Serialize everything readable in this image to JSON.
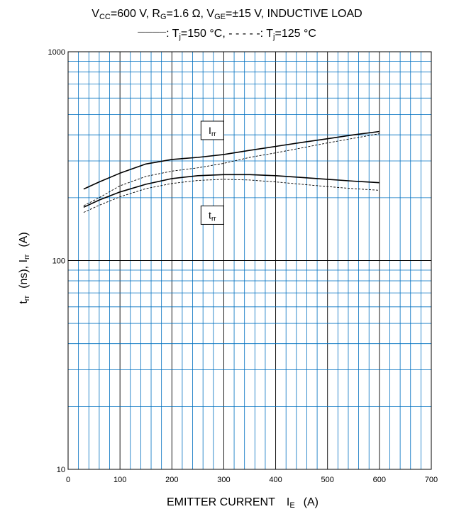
{
  "chart_data": {
    "type": "line",
    "title": "VCC=600 V, RG=1.6 Ω, VGE=±15 V, INDUCTIVE LOAD",
    "title_parts": {
      "v": "V",
      "cc": "CC",
      "part1": "=600 V, R",
      "g": "G",
      "part2": "=1.6 Ω, V",
      "ge": "GE",
      "part3": "=±15 V, INDUCTIVE LOAD"
    },
    "subtitle": "————: Tj=150 °C, - - - - -: Tj=125 °C",
    "subtitle_parts": {
      "solid_mark": "————",
      "a": ": T",
      "j1": "j",
      "b": "=150 °C, - - - - -: T",
      "j2": "j",
      "c": "=125 °C"
    },
    "xlabel": "EMITTER CURRENT IE (A)",
    "xlabel_parts": {
      "main": "EMITTER CURRENT",
      "i": "I",
      "e": "E",
      "unit": "(A)"
    },
    "ylabel": "trr (ns), Irr (A)",
    "ylabel_parts": {
      "t": "t",
      "rr1": "rr",
      "ns": "(ns), I",
      "rr2": "rr",
      "a": "(A)"
    },
    "x_ticks": [
      "0",
      "100",
      "200",
      "300",
      "400",
      "500",
      "600",
      "700"
    ],
    "y_ticks": [
      "10",
      "100",
      "1000"
    ],
    "xlim": [
      0,
      700
    ],
    "ylim": [
      10,
      1000
    ],
    "y_scale": "log",
    "grid": true,
    "grid_color": "#0070c0",
    "annotations": [
      {
        "text_main": "I",
        "text_sub": "rr",
        "x": 278,
        "y": 420
      },
      {
        "text_main": "t",
        "text_sub": "rr",
        "x": 278,
        "y": 165
      }
    ],
    "series": [
      {
        "style": "solid",
        "x": [
          30,
          60,
          100,
          150,
          200,
          250,
          300,
          350,
          400,
          450,
          500,
          550,
          600
        ],
        "y": [
          220,
          238,
          262,
          290,
          305,
          312,
          322,
          337,
          352,
          368,
          383,
          400,
          415
        ]
      },
      {
        "style": "dashed",
        "x": [
          30,
          60,
          100,
          150,
          200,
          250,
          300,
          350,
          400,
          450,
          500,
          550,
          600
        ],
        "y": [
          183,
          200,
          228,
          253,
          268,
          278,
          292,
          312,
          328,
          346,
          366,
          385,
          405
        ]
      },
      {
        "style": "solid",
        "x": [
          30,
          60,
          100,
          150,
          200,
          250,
          300,
          350,
          400,
          450,
          500,
          550,
          600
        ],
        "y": [
          180,
          195,
          213,
          232,
          247,
          255,
          258,
          258,
          255,
          250,
          245,
          240,
          236
        ]
      },
      {
        "style": "dashed",
        "x": [
          30,
          60,
          100,
          150,
          200,
          250,
          300,
          350,
          400,
          450,
          500,
          550,
          600
        ],
        "y": [
          170,
          184,
          202,
          221,
          234,
          242,
          245,
          243,
          238,
          232,
          226,
          221,
          217
        ]
      }
    ]
  }
}
